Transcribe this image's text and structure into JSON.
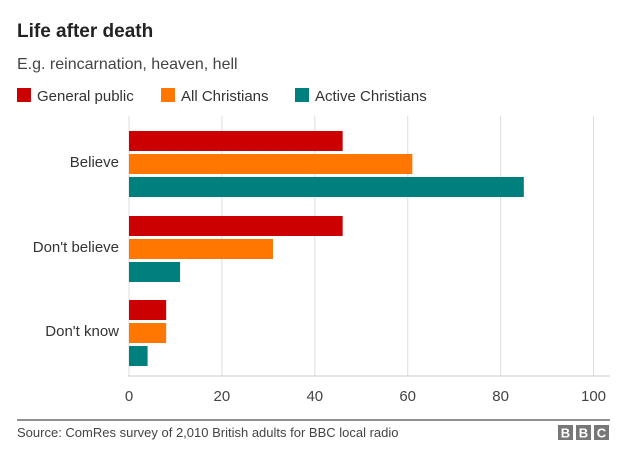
{
  "chart_data": {
    "type": "bar",
    "orientation": "horizontal",
    "title": "Life after death",
    "subtitle": "E.g. reincarnation, heaven, hell",
    "categories": [
      "Believe",
      "Don't believe",
      "Don't know"
    ],
    "series": [
      {
        "name": "General public",
        "color": "#cc0000",
        "values": [
          46,
          46,
          8
        ]
      },
      {
        "name": "All Christians",
        "color": "#ff7700",
        "values": [
          61,
          31,
          8
        ]
      },
      {
        "name": "Active Christians",
        "color": "#007f7f",
        "values": [
          85,
          11,
          4
        ]
      }
    ],
    "xlim": [
      0,
      100
    ],
    "xticks": [
      "0",
      "20",
      "40",
      "60",
      "80",
      "100"
    ],
    "xlabel": "",
    "ylabel": "",
    "grid": true,
    "legend": "top-left",
    "source": "Source: ComRes survey of 2,010 British adults for BBC local radio",
    "logo": "BBC"
  }
}
